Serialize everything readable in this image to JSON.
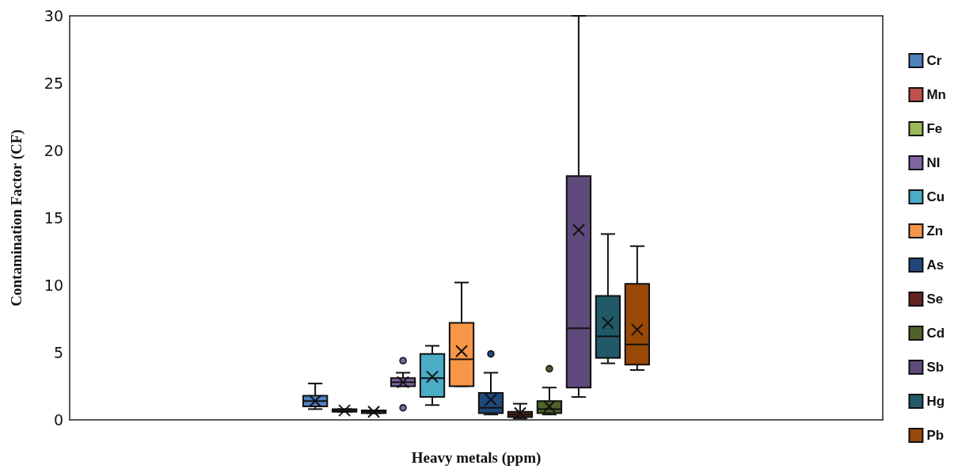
{
  "chart_data": {
    "type": "box",
    "xlabel": "Heavy metals (ppm)",
    "ylabel": "Contamination Factor (CF)",
    "categories": [
      null
    ],
    "ylim": [
      0,
      30
    ],
    "yticks": [
      0,
      5,
      10,
      15,
      20,
      25,
      30
    ],
    "grid": false,
    "legend": "right",
    "series": [
      {
        "name": "Cr",
        "color": "#4f81bd",
        "boxes": [
          {
            "low": 0.8,
            "q1": 1.0,
            "median": 1.4,
            "q3": 1.8,
            "high": 2.7,
            "mean": 1.4
          }
        ]
      },
      {
        "name": "Mn",
        "color": "#c0504d",
        "boxes": [
          {
            "low": 0.6,
            "q1": 0.6,
            "median": 0.7,
            "q3": 0.8,
            "high": 0.8,
            "mean": 0.7
          }
        ]
      },
      {
        "name": "Fe",
        "color": "#9bbb59",
        "boxes": [
          {
            "low": 0.5,
            "q1": 0.5,
            "median": 0.6,
            "q3": 0.7,
            "high": 0.7,
            "mean": 0.6
          }
        ]
      },
      {
        "name": "NI",
        "color": "#8064a2",
        "boxes": [
          {
            "low": 2.5,
            "q1": 2.5,
            "median": 2.8,
            "q3": 3.1,
            "high": 3.5,
            "mean": 2.8,
            "outliers": [
              4.4,
              0.9
            ]
          }
        ]
      },
      {
        "name": "Cu",
        "color": "#4bacc6",
        "boxes": [
          {
            "low": 1.1,
            "q1": 1.7,
            "median": 3.1,
            "q3": 4.9,
            "high": 5.5,
            "mean": 3.2
          }
        ]
      },
      {
        "name": "Zn",
        "color": "#f79646",
        "boxes": [
          {
            "low": 2.5,
            "q1": 2.5,
            "median": 4.5,
            "q3": 7.2,
            "high": 10.2,
            "mean": 5.1
          }
        ]
      },
      {
        "name": "As",
        "color": "#1f497d",
        "boxes": [
          {
            "low": 0.4,
            "q1": 0.5,
            "median": 0.9,
            "q3": 2.0,
            "high": 3.5,
            "mean": 1.5,
            "outliers": [
              4.9
            ]
          }
        ]
      },
      {
        "name": "Se",
        "color": "#632523",
        "boxes": [
          {
            "low": 0.1,
            "q1": 0.2,
            "median": 0.4,
            "q3": 0.6,
            "high": 1.2,
            "mean": 0.5
          }
        ]
      },
      {
        "name": "Cd",
        "color": "#4f6228",
        "boxes": [
          {
            "low": 0.4,
            "q1": 0.5,
            "median": 0.8,
            "q3": 1.4,
            "high": 2.4,
            "mean": 1.0,
            "outliers": [
              3.8
            ]
          }
        ]
      },
      {
        "name": "Sb",
        "color": "#604a7b",
        "boxes": [
          {
            "low": 1.7,
            "q1": 2.4,
            "median": 6.8,
            "q3": 18.1,
            "high": 30,
            "mean": 14.1
          }
        ]
      },
      {
        "name": "Hg",
        "color": "#215968",
        "boxes": [
          {
            "low": 4.2,
            "q1": 4.6,
            "median": 6.2,
            "q3": 9.2,
            "high": 13.8,
            "mean": 7.2
          }
        ]
      },
      {
        "name": "Pb",
        "color": "#984807",
        "boxes": [
          {
            "low": 3.7,
            "q1": 4.1,
            "median": 5.6,
            "q3": 10.1,
            "high": 12.9,
            "mean": 6.7
          }
        ]
      }
    ]
  }
}
